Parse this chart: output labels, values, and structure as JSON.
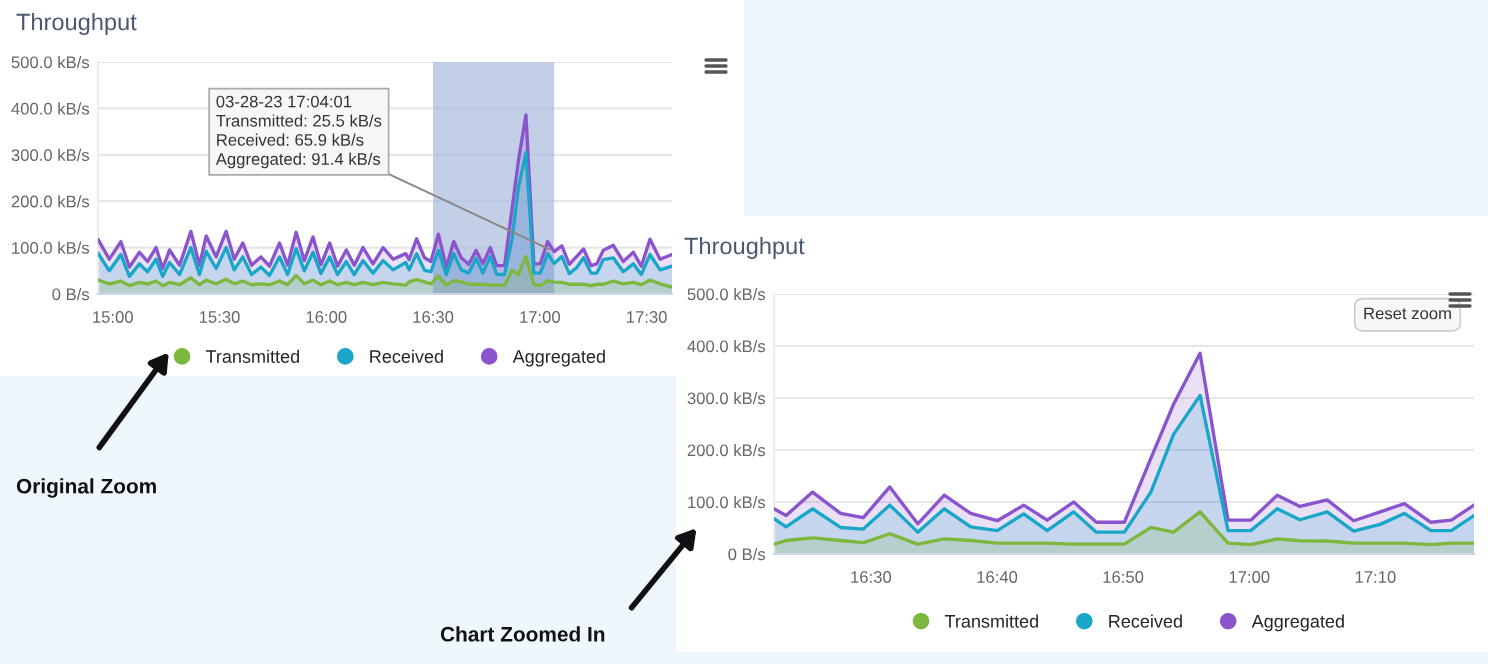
{
  "chart_data": [
    {
      "type": "area",
      "title": "Throughput",
      "x": [
        14.931,
        14.984,
        15.038,
        15.078,
        15.125,
        15.163,
        15.203,
        15.234,
        15.266,
        15.313,
        15.366,
        15.406,
        15.438,
        15.484,
        15.531,
        15.569,
        15.609,
        15.65,
        15.694,
        15.734,
        15.781,
        15.819,
        15.859,
        15.897,
        15.938,
        15.975,
        16.016,
        16.053,
        16.094,
        16.131,
        16.172,
        16.219,
        16.266,
        16.313,
        16.372,
        16.388,
        16.423,
        16.46,
        16.49,
        16.525,
        16.562,
        16.597,
        16.632,
        16.667,
        16.702,
        16.733,
        16.768,
        16.798,
        16.835,
        16.87,
        16.9,
        16.935,
        16.972,
        17.002,
        17.037,
        17.067,
        17.103,
        17.138,
        17.173,
        17.205,
        17.24,
        17.267,
        17.297,
        17.344,
        17.391,
        17.438,
        17.475,
        17.516,
        17.563,
        17.619
      ],
      "series": [
        {
          "name": "Transmitted",
          "color": "#7cb83e",
          "values": [
            30,
            22,
            28,
            18,
            25,
            22,
            28,
            18,
            25,
            20,
            35,
            20,
            30,
            22,
            32,
            22,
            28,
            20,
            22,
            20,
            28,
            20,
            40,
            22,
            30,
            20,
            28,
            20,
            25,
            20,
            25,
            20,
            25,
            22,
            19,
            26,
            31,
            26,
            22,
            39,
            19,
            29,
            26,
            21,
            21,
            21,
            19,
            19,
            19,
            51,
            42,
            81,
            21,
            18,
            29,
            25.5,
            25,
            21,
            21,
            21,
            18,
            21,
            21,
            28,
            22,
            25,
            20,
            30,
            22,
            15
          ]
        },
        {
          "name": "Received",
          "color": "#1aa6c8",
          "values": [
            88,
            50,
            85,
            38,
            65,
            48,
            75,
            38,
            68,
            42,
            100,
            42,
            92,
            55,
            100,
            52,
            80,
            42,
            58,
            40,
            80,
            42,
            98,
            50,
            90,
            44,
            80,
            42,
            70,
            42,
            72,
            45,
            72,
            52,
            68,
            52,
            87,
            51,
            48,
            94,
            42,
            87,
            52,
            45,
            77,
            45,
            81,
            42,
            42,
            119,
            230,
            305,
            45,
            45,
            87,
            65.9,
            81,
            44,
            57,
            78,
            45,
            45,
            74,
            78,
            48,
            65,
            42,
            85,
            52,
            60
          ]
        },
        {
          "name": "Aggregated",
          "color": "#8a55cc",
          "values": [
            118,
            75,
            113,
            58,
            90,
            70,
            100,
            55,
            95,
            62,
            135,
            62,
            125,
            80,
            135,
            75,
            110,
            62,
            80,
            60,
            110,
            62,
            133,
            72,
            123,
            63,
            110,
            60,
            95,
            62,
            100,
            65,
            100,
            75,
            87,
            74,
            119,
            78,
            70,
            129,
            58,
            113,
            78,
            64,
            94,
            65,
            100,
            61,
            61,
            184,
            288,
            386,
            65,
            65,
            113,
            91.4,
            104,
            64,
            81,
            97,
            61,
            65,
            94,
            105,
            70,
            90,
            60,
            118,
            75,
            85
          ]
        }
      ],
      "xlim": [
        14.931,
        17.619
      ],
      "xticks": [
        {
          "value": 15,
          "label": "15:00"
        },
        {
          "value": 15.5,
          "label": "15:30"
        },
        {
          "value": 16,
          "label": "16:00"
        },
        {
          "value": 16.5,
          "label": "16:30"
        },
        {
          "value": 17,
          "label": "17:00"
        },
        {
          "value": 17.5,
          "label": "17:30"
        }
      ],
      "ylim": [
        0,
        500
      ],
      "yticks": [
        {
          "value": 0,
          "label": "0 B/s"
        },
        {
          "value": 100,
          "label": "100.0 kB/s"
        },
        {
          "value": 200,
          "label": "200.0 kB/s"
        },
        {
          "value": 300,
          "label": "300.0 kB/s"
        },
        {
          "value": 400,
          "label": "400.0 kB/s"
        },
        {
          "value": 500,
          "label": "500.0 kB/s"
        }
      ],
      "bands": [
        {
          "axis": "x",
          "from": 16.5,
          "to": 17.067,
          "color": "#a9bbdd"
        }
      ],
      "annotations": [
        {
          "text": "03-28-23 17:04:01\nTransmitted: 25.5 kB/s\nReceived: 65.9 kB/s\nAggregated: 91.4 kB/s",
          "x": 17.067,
          "y": 91.4
        },
        "Original Zoom"
      ],
      "grid": "y",
      "legend": "bottom"
    },
    {
      "type": "area",
      "title": "Throughput",
      "x": [
        16.372,
        16.388,
        16.423,
        16.46,
        16.49,
        16.525,
        16.562,
        16.597,
        16.632,
        16.667,
        16.702,
        16.733,
        16.768,
        16.798,
        16.835,
        16.87,
        16.9,
        16.935,
        16.972,
        17.002,
        17.037,
        17.067,
        17.103,
        17.138,
        17.173,
        17.205,
        17.24,
        17.267,
        17.297
      ],
      "series": [
        {
          "name": "Transmitted",
          "color": "#7cb83e",
          "values": [
            19,
            26,
            31,
            26,
            22,
            39,
            19,
            29,
            26,
            21,
            21,
            21,
            19,
            19,
            19,
            51,
            42,
            81,
            21,
            18,
            29,
            25.5,
            25,
            21,
            21,
            21,
            18,
            21,
            21
          ]
        },
        {
          "name": "Received",
          "color": "#1aa6c8",
          "values": [
            68,
            52,
            87,
            51,
            48,
            94,
            42,
            87,
            52,
            45,
            77,
            45,
            81,
            42,
            42,
            119,
            230,
            305,
            45,
            45,
            87,
            65.9,
            81,
            44,
            57,
            78,
            45,
            45,
            74
          ]
        },
        {
          "name": "Aggregated",
          "color": "#8a55cc",
          "values": [
            87,
            74,
            119,
            78,
            70,
            129,
            58,
            113,
            78,
            64,
            94,
            65,
            100,
            61,
            61,
            184,
            288,
            386,
            65,
            65,
            113,
            91.4,
            104,
            64,
            81,
            97,
            61,
            65,
            94
          ]
        }
      ],
      "xlim": [
        16.372,
        17.297
      ],
      "xticks": [
        {
          "value": 16.5,
          "label": "16:30"
        },
        {
          "value": 16.6667,
          "label": "16:40"
        },
        {
          "value": 16.8333,
          "label": "16:50"
        },
        {
          "value": 17,
          "label": "17:00"
        },
        {
          "value": 17.1667,
          "label": "17:10"
        }
      ],
      "ylim": [
        0,
        500
      ],
      "yticks": [
        {
          "value": 0,
          "label": "0 B/s"
        },
        {
          "value": 100,
          "label": "100.0 kB/s"
        },
        {
          "value": 200,
          "label": "200.0 kB/s"
        },
        {
          "value": 300,
          "label": "300.0 kB/s"
        },
        {
          "value": 400,
          "label": "400.0 kB/s"
        },
        {
          "value": 500,
          "label": "500.0 kB/s"
        }
      ],
      "annotations": [
        "Reset zoom",
        "Chart Zoomed In"
      ],
      "grid": "y",
      "legend": "bottom"
    }
  ]
}
